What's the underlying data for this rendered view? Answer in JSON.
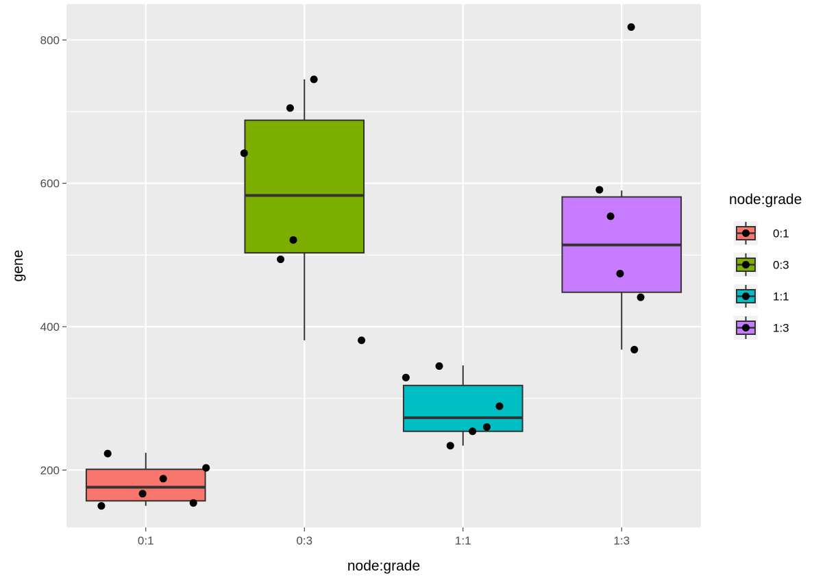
{
  "chart_data": {
    "type": "boxplot",
    "xlabel": "node:grade",
    "ylabel": "gene",
    "categories": [
      "0:1",
      "0:3",
      "1:1",
      "1:3"
    ],
    "ylim": [
      120,
      850
    ],
    "yticks": [
      200,
      400,
      600,
      800
    ],
    "grid": true,
    "legend": {
      "title": "node:grade",
      "placement": "right",
      "entries": [
        "0:1",
        "0:3",
        "1:1",
        "1:3"
      ]
    },
    "colors": [
      "#F8766D",
      "#7CAE00",
      "#00BFC4",
      "#C77CFF"
    ],
    "boxes": [
      {
        "category": "0:1",
        "whisker_low": 150,
        "q1": 157,
        "median": 176,
        "q3": 201,
        "whisker_high": 224
      },
      {
        "category": "0:3",
        "whisker_low": 381,
        "q1": 503,
        "median": 583,
        "q3": 688,
        "whisker_high": 745
      },
      {
        "category": "1:1",
        "whisker_low": 234,
        "q1": 254,
        "median": 273,
        "q3": 318,
        "whisker_high": 346
      },
      {
        "category": "1:3",
        "whisker_low": 368,
        "q1": 448,
        "median": 514,
        "q3": 581,
        "whisker_high": 590
      }
    ],
    "points": [
      {
        "category": "0:1",
        "jitter": -0.28,
        "value": 150
      },
      {
        "category": "0:1",
        "jitter": -0.24,
        "value": 223
      },
      {
        "category": "0:1",
        "jitter": -0.02,
        "value": 167
      },
      {
        "category": "0:1",
        "jitter": 0.11,
        "value": 188
      },
      {
        "category": "0:1",
        "jitter": 0.3,
        "value": 154
      },
      {
        "category": "0:1",
        "jitter": 0.38,
        "value": 203
      },
      {
        "category": "0:3",
        "jitter": -0.38,
        "value": 642
      },
      {
        "category": "0:3",
        "jitter": -0.15,
        "value": 494
      },
      {
        "category": "0:3",
        "jitter": -0.09,
        "value": 705
      },
      {
        "category": "0:3",
        "jitter": -0.07,
        "value": 521
      },
      {
        "category": "0:3",
        "jitter": 0.06,
        "value": 745
      },
      {
        "category": "0:3",
        "jitter": 0.36,
        "value": 381
      },
      {
        "category": "1:1",
        "jitter": -0.36,
        "value": 329
      },
      {
        "category": "1:1",
        "jitter": -0.15,
        "value": 345
      },
      {
        "category": "1:1",
        "jitter": -0.08,
        "value": 234
      },
      {
        "category": "1:1",
        "jitter": 0.06,
        "value": 254
      },
      {
        "category": "1:1",
        "jitter": 0.15,
        "value": 260
      },
      {
        "category": "1:1",
        "jitter": 0.23,
        "value": 289
      },
      {
        "category": "1:3",
        "jitter": -0.14,
        "value": 591
      },
      {
        "category": "1:3",
        "jitter": -0.07,
        "value": 554
      },
      {
        "category": "1:3",
        "jitter": -0.01,
        "value": 474
      },
      {
        "category": "1:3",
        "jitter": 0.06,
        "value": 818
      },
      {
        "category": "1:3",
        "jitter": 0.08,
        "value": 368
      },
      {
        "category": "1:3",
        "jitter": 0.12,
        "value": 441
      }
    ]
  }
}
